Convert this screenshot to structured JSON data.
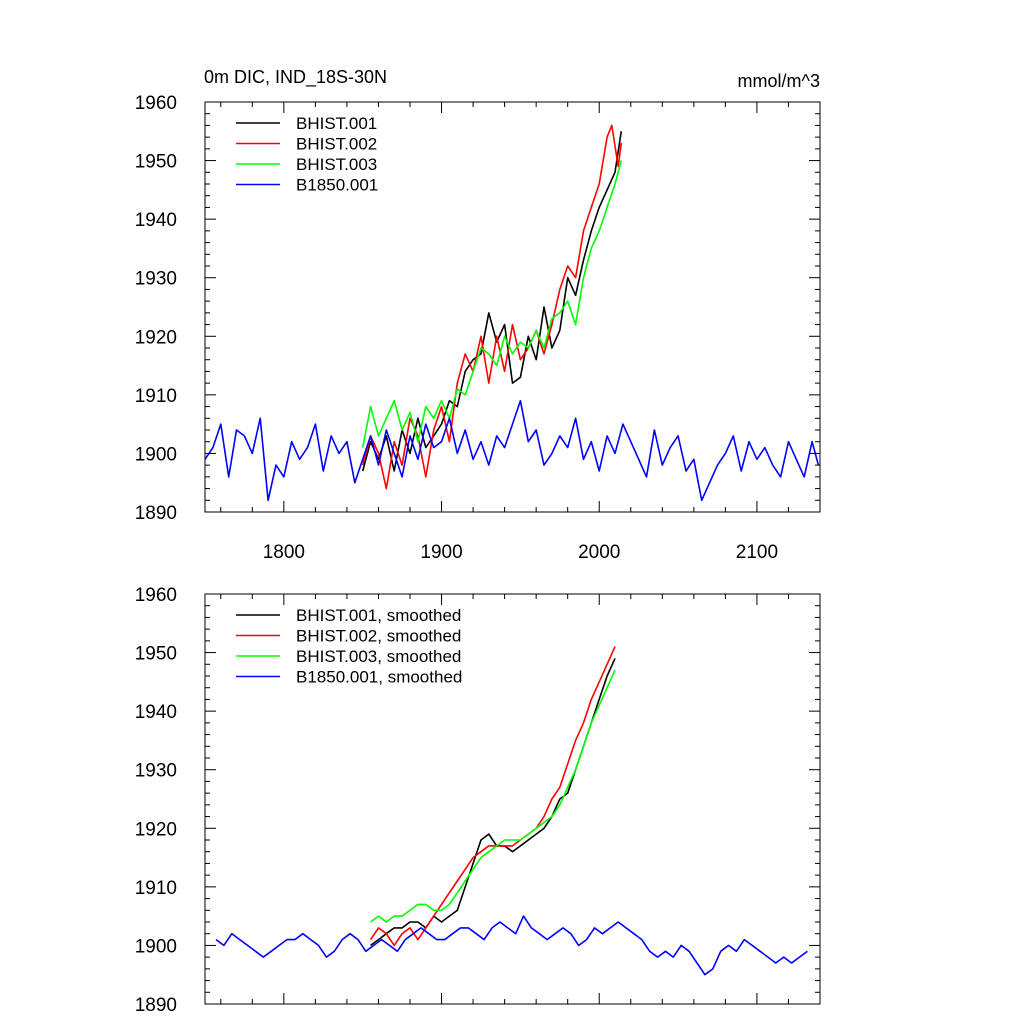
{
  "figure": {
    "title_left": "0m DIC, IND_18S-30N",
    "title_right": "mmol/m^3"
  },
  "chart_data": [
    {
      "type": "line",
      "title": "0m DIC, IND_18S-30N",
      "units": "mmol/m^3",
      "xlim": [
        1750,
        2140
      ],
      "ylim": [
        1890,
        1960
      ],
      "xticks": [
        1800,
        1900,
        2000,
        2100
      ],
      "yticks": [
        1890,
        1900,
        1910,
        1920,
        1930,
        1940,
        1950,
        1960
      ],
      "show_x_tick_labels": true,
      "grid": false,
      "legend_position": "top-left",
      "series": [
        {
          "name": "BHIST.001",
          "color": "#000000",
          "x": [
            1850,
            1855,
            1860,
            1865,
            1870,
            1875,
            1880,
            1885,
            1890,
            1895,
            1900,
            1905,
            1910,
            1915,
            1920,
            1925,
            1930,
            1935,
            1940,
            1945,
            1950,
            1955,
            1960,
            1965,
            1970,
            1975,
            1980,
            1985,
            1990,
            1995,
            2000,
            2005,
            2010,
            2014
          ],
          "y": [
            1897,
            1902,
            1899,
            1903,
            1897,
            1904,
            1900,
            1906,
            1901,
            1903,
            1905,
            1909,
            1908,
            1914,
            1916,
            1917,
            1924,
            1919,
            1922,
            1912,
            1913,
            1920,
            1916,
            1925,
            1918,
            1921,
            1930,
            1927,
            1933,
            1938,
            1942,
            1945,
            1948,
            1955
          ]
        },
        {
          "name": "BHIST.002",
          "color": "#ff0000",
          "x": [
            1850,
            1855,
            1860,
            1865,
            1870,
            1875,
            1880,
            1885,
            1890,
            1895,
            1900,
            1905,
            1910,
            1915,
            1920,
            1925,
            1930,
            1935,
            1940,
            1945,
            1950,
            1955,
            1960,
            1965,
            1970,
            1975,
            1980,
            1985,
            1990,
            1995,
            2000,
            2005,
            2008,
            2012,
            2014
          ],
          "y": [
            1898,
            1903,
            1900,
            1894,
            1902,
            1898,
            1906,
            1903,
            1896,
            1904,
            1908,
            1902,
            1912,
            1917,
            1914,
            1920,
            1912,
            1920,
            1914,
            1922,
            1916,
            1918,
            1921,
            1917,
            1922,
            1928,
            1932,
            1930,
            1938,
            1942,
            1946,
            1954,
            1956,
            1949,
            1953
          ]
        },
        {
          "name": "BHIST.003",
          "color": "#00ff00",
          "x": [
            1850,
            1855,
            1860,
            1865,
            1870,
            1875,
            1880,
            1885,
            1890,
            1895,
            1900,
            1905,
            1910,
            1915,
            1920,
            1925,
            1930,
            1935,
            1940,
            1945,
            1950,
            1955,
            1960,
            1965,
            1970,
            1975,
            1980,
            1985,
            1990,
            1995,
            2000,
            2005,
            2010,
            2014
          ],
          "y": [
            1901,
            1908,
            1903,
            1906,
            1909,
            1904,
            1907,
            1902,
            1908,
            1906,
            1909,
            1906,
            1911,
            1910,
            1914,
            1918,
            1917,
            1915,
            1920,
            1917,
            1919,
            1918,
            1921,
            1918,
            1923,
            1924,
            1926,
            1922,
            1930,
            1935,
            1938,
            1942,
            1946,
            1950
          ]
        },
        {
          "name": "B1850.001",
          "color": "#0000ff",
          "x": [
            1750,
            1755,
            1760,
            1765,
            1770,
            1775,
            1780,
            1785,
            1790,
            1795,
            1800,
            1805,
            1810,
            1815,
            1820,
            1825,
            1830,
            1835,
            1840,
            1845,
            1850,
            1855,
            1860,
            1865,
            1870,
            1875,
            1880,
            1885,
            1890,
            1895,
            1900,
            1905,
            1910,
            1915,
            1920,
            1925,
            1930,
            1935,
            1940,
            1945,
            1950,
            1955,
            1960,
            1965,
            1970,
            1975,
            1980,
            1985,
            1990,
            1995,
            2000,
            2005,
            2010,
            2015,
            2020,
            2025,
            2030,
            2035,
            2040,
            2045,
            2050,
            2055,
            2060,
            2065,
            2070,
            2075,
            2080,
            2085,
            2090,
            2095,
            2100,
            2105,
            2110,
            2115,
            2120,
            2125,
            2130,
            2135,
            2139
          ],
          "y": [
            1899,
            1901,
            1905,
            1896,
            1904,
            1903,
            1900,
            1906,
            1892,
            1898,
            1896,
            1902,
            1899,
            1901,
            1905,
            1897,
            1903,
            1900,
            1902,
            1895,
            1899,
            1903,
            1898,
            1904,
            1900,
            1896,
            1903,
            1899,
            1905,
            1901,
            1902,
            1906,
            1900,
            1904,
            1899,
            1902,
            1898,
            1903,
            1901,
            1905,
            1909,
            1902,
            1904,
            1898,
            1900,
            1903,
            1901,
            1906,
            1899,
            1902,
            1897,
            1903,
            1900,
            1905,
            1902,
            1899,
            1896,
            1904,
            1898,
            1901,
            1903,
            1897,
            1899,
            1892,
            1895,
            1898,
            1900,
            1903,
            1897,
            1902,
            1899,
            1901,
            1898,
            1896,
            1902,
            1899,
            1896,
            1902,
            1898
          ]
        }
      ]
    },
    {
      "type": "line",
      "xlim": [
        1750,
        2140
      ],
      "ylim": [
        1890,
        1960
      ],
      "xticks": [
        1800,
        1900,
        2000,
        2100
      ],
      "yticks": [
        1890,
        1900,
        1910,
        1920,
        1930,
        1940,
        1950,
        1960
      ],
      "show_x_tick_labels": false,
      "grid": false,
      "legend_position": "top-left",
      "series": [
        {
          "name": "BHIST.001, smoothed",
          "color": "#000000",
          "x": [
            1855,
            1860,
            1865,
            1870,
            1875,
            1880,
            1885,
            1890,
            1895,
            1900,
            1905,
            1910,
            1915,
            1920,
            1925,
            1930,
            1935,
            1940,
            1945,
            1950,
            1955,
            1960,
            1965,
            1970,
            1975,
            1980,
            1985,
            1990,
            1995,
            2000,
            2005,
            2010
          ],
          "y": [
            1900,
            1901,
            1902,
            1903,
            1903,
            1904,
            1904,
            1903,
            1905,
            1904,
            1905,
            1906,
            1910,
            1914,
            1918,
            1919,
            1917,
            1917,
            1916,
            1917,
            1918,
            1919,
            1920,
            1922,
            1925,
            1926,
            1930,
            1934,
            1938,
            1942,
            1946,
            1949
          ]
        },
        {
          "name": "BHIST.002, smoothed",
          "color": "#ff0000",
          "x": [
            1855,
            1860,
            1865,
            1870,
            1875,
            1880,
            1885,
            1890,
            1895,
            1900,
            1905,
            1910,
            1915,
            1920,
            1925,
            1930,
            1935,
            1940,
            1945,
            1950,
            1955,
            1960,
            1965,
            1970,
            1975,
            1980,
            1985,
            1990,
            1995,
            2000,
            2005,
            2010
          ],
          "y": [
            1901,
            1903,
            1902,
            1900,
            1902,
            1903,
            1901,
            1903,
            1905,
            1907,
            1909,
            1911,
            1913,
            1915,
            1916,
            1917,
            1917,
            1917,
            1917,
            1918,
            1919,
            1920,
            1922,
            1925,
            1927,
            1931,
            1935,
            1938,
            1942,
            1945,
            1948,
            1951
          ]
        },
        {
          "name": "BHIST.003, smoothed",
          "color": "#00ff00",
          "x": [
            1855,
            1860,
            1865,
            1870,
            1875,
            1880,
            1885,
            1890,
            1895,
            1900,
            1905,
            1910,
            1915,
            1920,
            1925,
            1930,
            1935,
            1940,
            1945,
            1950,
            1955,
            1960,
            1965,
            1970,
            1975,
            1980,
            1985,
            1990,
            1995,
            2000,
            2005,
            2010
          ],
          "y": [
            1904,
            1905,
            1904,
            1905,
            1905,
            1906,
            1907,
            1907,
            1906,
            1906,
            1907,
            1909,
            1911,
            1913,
            1915,
            1916,
            1917,
            1918,
            1918,
            1918,
            1919,
            1920,
            1921,
            1922,
            1924,
            1927,
            1930,
            1934,
            1938,
            1941,
            1944,
            1947
          ]
        },
        {
          "name": "B1850.001, smoothed",
          "color": "#0000ff",
          "x": [
            1757,
            1762,
            1767,
            1772,
            1777,
            1782,
            1787,
            1792,
            1797,
            1802,
            1807,
            1812,
            1817,
            1822,
            1827,
            1832,
            1837,
            1842,
            1847,
            1852,
            1857,
            1862,
            1867,
            1872,
            1877,
            1882,
            1887,
            1892,
            1897,
            1902,
            1907,
            1912,
            1917,
            1922,
            1927,
            1932,
            1937,
            1942,
            1947,
            1952,
            1957,
            1962,
            1967,
            1972,
            1977,
            1982,
            1987,
            1992,
            1997,
            2002,
            2007,
            2012,
            2017,
            2022,
            2027,
            2032,
            2037,
            2042,
            2047,
            2052,
            2057,
            2062,
            2067,
            2072,
            2077,
            2082,
            2087,
            2092,
            2097,
            2102,
            2107,
            2112,
            2117,
            2122,
            2127,
            2132
          ],
          "y": [
            1901,
            1900,
            1902,
            1901,
            1900,
            1899,
            1898,
            1899,
            1900,
            1901,
            1901,
            1902,
            1901,
            1900,
            1898,
            1899,
            1901,
            1902,
            1901,
            1899,
            1900,
            1901,
            1900,
            1899,
            1901,
            1902,
            1903,
            1902,
            1901,
            1901,
            1902,
            1903,
            1903,
            1902,
            1901,
            1903,
            1904,
            1903,
            1902,
            1905,
            1903,
            1902,
            1901,
            1902,
            1903,
            1902,
            1900,
            1901,
            1903,
            1902,
            1903,
            1904,
            1903,
            1902,
            1901,
            1899,
            1898,
            1899,
            1898,
            1900,
            1899,
            1897,
            1895,
            1896,
            1899,
            1900,
            1899,
            1901,
            1900,
            1899,
            1898,
            1897,
            1898,
            1897,
            1898,
            1899
          ]
        }
      ]
    }
  ]
}
